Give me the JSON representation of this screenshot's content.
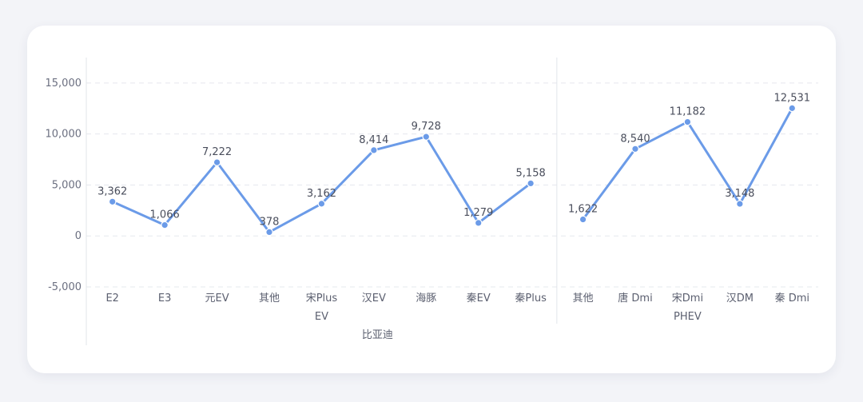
{
  "chart_data": {
    "type": "line",
    "title": "",
    "xlabel": "",
    "ylabel": "",
    "ylim": [
      -5000,
      17500
    ],
    "yticks": [
      "-5,000",
      "0",
      "5,000",
      "10,000",
      "15,000"
    ],
    "ytick_values": [
      -5000,
      0,
      5000,
      10000,
      15000
    ],
    "grid": true,
    "legend": "none",
    "line_color": "#6b9be8",
    "top_group": "比亚迪",
    "panels": [
      {
        "group": "EV",
        "categories": [
          "E2",
          "E3",
          "元EV",
          "其他",
          "宋Plus",
          "汉EV",
          "海豚",
          "秦EV",
          "秦Plus"
        ],
        "values": [
          3362,
          1066,
          7222,
          378,
          3162,
          8414,
          9728,
          1279,
          5158
        ],
        "labels": [
          "3,362",
          "1,066",
          "7,222",
          "378",
          "3,162",
          "8,414",
          "9,728",
          "1,279",
          "5,158"
        ]
      },
      {
        "group": "PHEV",
        "categories": [
          "其他",
          "唐 Dmi",
          "宋Dmi",
          "汉DM",
          "秦 Dmi"
        ],
        "values": [
          1622,
          8540,
          11182,
          3148,
          12531
        ],
        "labels": [
          "1,622",
          "8,540",
          "11,182",
          "3,148",
          "12,531"
        ]
      }
    ]
  }
}
